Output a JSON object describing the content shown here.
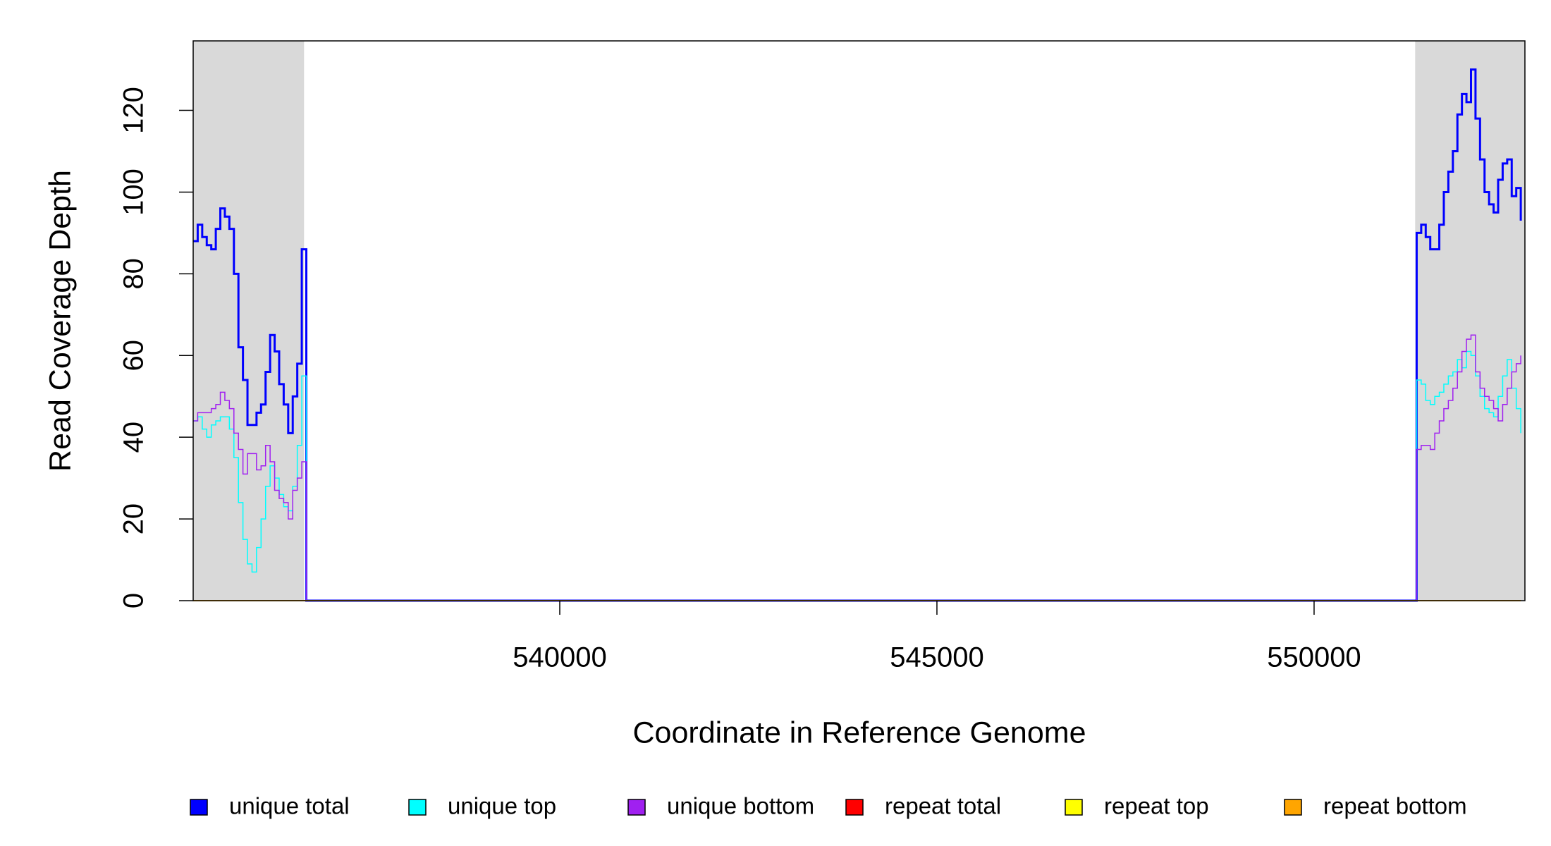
{
  "chart_data": {
    "type": "step-line",
    "xlabel": "Coordinate in Reference Genome",
    "ylabel": "Read Coverage Depth",
    "xlim": [
      535140,
      552795
    ],
    "ylim": [
      0,
      137
    ],
    "xticks": [
      540000,
      545000,
      550000
    ],
    "yticks": [
      0,
      20,
      40,
      60,
      80,
      100,
      120
    ],
    "shaded_regions": [
      [
        535140,
        536610
      ],
      [
        551340,
        552795
      ]
    ],
    "shade_color": "#d9d9d9",
    "x": [
      535140,
      535200,
      535260,
      535320,
      535380,
      535440,
      535500,
      535560,
      535620,
      535680,
      535740,
      535800,
      535860,
      535920,
      535980,
      536040,
      536100,
      536160,
      536220,
      536280,
      536340,
      536400,
      536460,
      536520,
      536580,
      536640,
      551320,
      551360,
      551420,
      551480,
      551540,
      551600,
      551660,
      551720,
      551780,
      551840,
      551900,
      551960,
      552020,
      552080,
      552140,
      552200,
      552260,
      552320,
      552380,
      552440,
      552500,
      552560,
      552620,
      552680,
      552740
    ],
    "series": [
      {
        "name": "unique total",
        "color": "#0000ff",
        "width": 3,
        "values": [
          88,
          92,
          89,
          87,
          86,
          91,
          96,
          94,
          91,
          80,
          62,
          54,
          43,
          43,
          46,
          48,
          56,
          65,
          61,
          53,
          48,
          41,
          50,
          58,
          86,
          0,
          0,
          90,
          92,
          89,
          86,
          86,
          92,
          100,
          105,
          110,
          119,
          124,
          122,
          130,
          118,
          108,
          100,
          97,
          95,
          103,
          107,
          108,
          99,
          101,
          93
        ]
      },
      {
        "name": "unique top",
        "color": "#00ffff",
        "width": 1.5,
        "values": [
          44,
          45,
          42,
          40,
          43,
          44,
          45,
          45,
          42,
          35,
          24,
          15,
          9,
          7,
          13,
          20,
          28,
          33,
          30,
          26,
          23,
          22,
          28,
          38,
          55,
          0,
          0,
          54,
          53,
          49,
          48,
          50,
          51,
          53,
          55,
          56,
          59,
          57,
          61,
          60,
          55,
          50,
          47,
          46,
          45,
          50,
          55,
          59,
          52,
          47,
          41
        ]
      },
      {
        "name": "unique bottom",
        "color": "#a020f0",
        "width": 1.5,
        "values": [
          44,
          46,
          46,
          46,
          47,
          48,
          51,
          49,
          47,
          41,
          37,
          31,
          36,
          36,
          32,
          33,
          38,
          34,
          27,
          25,
          24,
          20,
          27,
          30,
          34,
          0,
          0,
          37,
          38,
          38,
          37,
          41,
          44,
          47,
          49,
          52,
          56,
          61,
          64,
          65,
          56,
          52,
          50,
          49,
          47,
          44,
          48,
          52,
          56,
          58,
          60
        ]
      },
      {
        "name": "repeat total",
        "color": "#ff0000",
        "width": 1.5,
        "values": [
          0,
          0,
          0,
          0,
          0,
          0,
          0,
          0,
          0,
          0,
          0,
          0,
          0,
          0,
          0,
          0,
          0,
          0,
          0,
          0,
          0,
          0,
          0,
          0,
          0,
          0,
          0,
          0,
          0,
          0,
          0,
          0,
          0,
          0,
          0,
          0,
          0,
          0,
          0,
          0,
          0,
          0,
          0,
          0,
          0,
          0,
          0,
          0,
          0,
          0,
          0
        ]
      },
      {
        "name": "repeat top",
        "color": "#ffff00",
        "width": 1.5,
        "values": [
          0,
          0,
          0,
          0,
          0,
          0,
          0,
          0,
          0,
          0,
          0,
          0,
          0,
          0,
          0,
          0,
          0,
          0,
          0,
          0,
          0,
          0,
          0,
          0,
          0,
          0,
          0,
          0,
          0,
          0,
          0,
          0,
          0,
          0,
          0,
          0,
          0,
          0,
          0,
          0,
          0,
          0,
          0,
          0,
          0,
          0,
          0,
          0,
          0,
          0,
          0
        ]
      },
      {
        "name": "repeat bottom",
        "color": "#ffa500",
        "width": 1.5,
        "values": [
          0,
          0,
          0,
          0,
          0,
          0,
          0,
          0,
          0,
          0,
          0,
          0,
          0,
          0,
          0,
          0,
          0,
          0,
          0,
          0,
          0,
          0,
          0,
          0,
          0,
          0,
          0,
          0,
          0,
          0,
          0,
          0,
          0,
          0,
          0,
          0,
          0,
          0,
          0,
          0,
          0,
          0,
          0,
          0,
          0,
          0,
          0,
          0,
          0,
          0,
          0
        ]
      }
    ]
  }
}
